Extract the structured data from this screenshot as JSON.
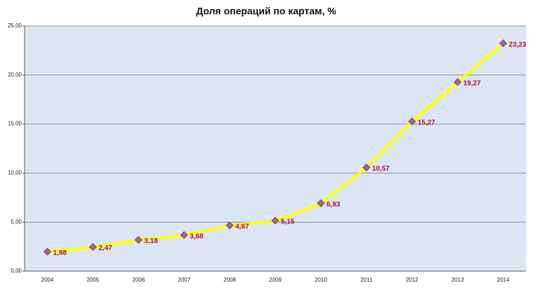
{
  "chart_data": {
    "type": "line",
    "title": "Доля операций по картам, %",
    "categories": [
      "2004",
      "2005",
      "2006",
      "2007",
      "2008",
      "2009",
      "2010",
      "2011",
      "2012",
      "2013",
      "2014"
    ],
    "values": [
      1.98,
      2.47,
      3.18,
      3.68,
      4.67,
      5.15,
      6.93,
      10.57,
      15.27,
      19.27,
      23.23
    ],
    "value_labels": [
      "1,98",
      "2,47",
      "3,18",
      "3,68",
      "4,67",
      "5,15",
      "6,93",
      "10,57",
      "15,27",
      "19,27",
      "23,23"
    ],
    "color": "#ffff00",
    "marker_color": "#9a6a88",
    "label_color": "#b0102a",
    "ylim": [
      0,
      25
    ],
    "yticks": [
      {
        "value": 0,
        "label": "0,00"
      },
      {
        "value": 5,
        "label": "5,00"
      },
      {
        "value": 10,
        "label": "10,00"
      },
      {
        "value": 15,
        "label": "15,00"
      },
      {
        "value": 20,
        "label": "20,00"
      },
      {
        "value": 25,
        "label": "25,00"
      }
    ],
    "grid": true
  }
}
